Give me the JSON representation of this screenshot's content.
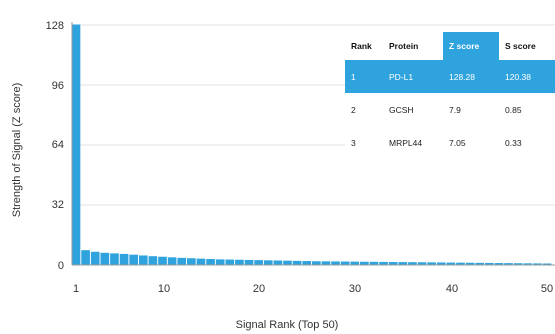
{
  "chart_data": {
    "type": "bar",
    "xlabel": "Signal Rank (Top 50)",
    "ylabel": "Strength of Signal (Z score)",
    "ylim": [
      0,
      128
    ],
    "yticks": [
      "0",
      "32",
      "64",
      "96",
      "128"
    ],
    "xticks": [
      "1",
      "10",
      "20",
      "30",
      "40",
      "50"
    ],
    "grid": true,
    "bar_color": "#2fa3dd",
    "x": [
      1,
      2,
      3,
      4,
      5,
      6,
      7,
      8,
      9,
      10,
      11,
      12,
      13,
      14,
      15,
      16,
      17,
      18,
      19,
      20,
      21,
      22,
      23,
      24,
      25,
      26,
      27,
      28,
      29,
      30,
      31,
      32,
      33,
      34,
      35,
      36,
      37,
      38,
      39,
      40,
      41,
      42,
      43,
      44,
      45,
      46,
      47,
      48,
      49,
      50
    ],
    "values": [
      128.28,
      7.9,
      7.05,
      6.5,
      6.2,
      5.9,
      5.5,
      5.1,
      4.7,
      4.4,
      4.1,
      3.8,
      3.6,
      3.4,
      3.2,
      3.0,
      2.9,
      2.8,
      2.7,
      2.6,
      2.5,
      2.4,
      2.3,
      2.2,
      2.1,
      2.0,
      1.95,
      1.9,
      1.85,
      1.8,
      1.75,
      1.7,
      1.65,
      1.6,
      1.55,
      1.5,
      1.45,
      1.4,
      1.35,
      1.3,
      1.25,
      1.2,
      1.15,
      1.1,
      1.05,
      1.0,
      0.95,
      0.9,
      0.85,
      0.8
    ]
  },
  "table": {
    "headers": [
      "Rank",
      "Protein",
      "Z score",
      "S score"
    ],
    "rows": [
      [
        "1",
        "PD-L1",
        "128.28",
        "120.38"
      ],
      [
        "2",
        "GCSH",
        "7.9",
        "0.85"
      ],
      [
        "3",
        "MRPL44",
        "7.05",
        "0.33"
      ]
    ],
    "highlight_color": "#2fa3dd"
  }
}
